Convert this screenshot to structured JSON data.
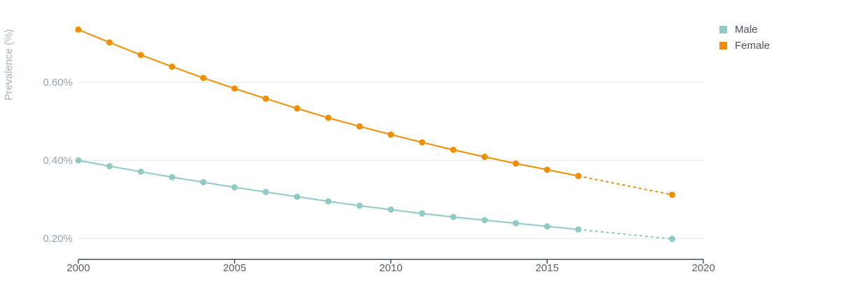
{
  "chart_data": {
    "type": "line",
    "ylabel": "Prevalence (%)",
    "xlim": [
      2000,
      2020
    ],
    "ylim": [
      0.15,
      0.76
    ],
    "x_ticks": [
      2000,
      2005,
      2010,
      2015,
      2020
    ],
    "y_ticks": [
      0.2,
      0.4,
      0.6
    ],
    "y_tick_labels": [
      "0.20%",
      "0.40%",
      "0.60%"
    ],
    "grid": "horizontal",
    "legend_position": "top-right",
    "series": [
      {
        "name": "Male",
        "color": "#8fcac6",
        "x": [
          2000,
          2001,
          2002,
          2003,
          2004,
          2005,
          2006,
          2007,
          2008,
          2009,
          2010,
          2011,
          2012,
          2013,
          2014,
          2015,
          2016
        ],
        "values": [
          0.4,
          0.385,
          0.371,
          0.357,
          0.344,
          0.331,
          0.319,
          0.307,
          0.295,
          0.284,
          0.274,
          0.264,
          0.255,
          0.247,
          0.239,
          0.231,
          0.223
        ],
        "projected": {
          "x": [
            2016,
            2019
          ],
          "values": [
            0.223,
            0.199
          ]
        }
      },
      {
        "name": "Female",
        "color": "#ef8f00",
        "x": [
          2000,
          2001,
          2002,
          2003,
          2004,
          2005,
          2006,
          2007,
          2008,
          2009,
          2010,
          2011,
          2012,
          2013,
          2014,
          2015,
          2016
        ],
        "values": [
          0.735,
          0.702,
          0.67,
          0.64,
          0.611,
          0.584,
          0.558,
          0.533,
          0.509,
          0.487,
          0.466,
          0.446,
          0.427,
          0.409,
          0.392,
          0.376,
          0.36
        ],
        "projected": {
          "x": [
            2016,
            2019
          ],
          "values": [
            0.36,
            0.312
          ]
        }
      }
    ]
  }
}
